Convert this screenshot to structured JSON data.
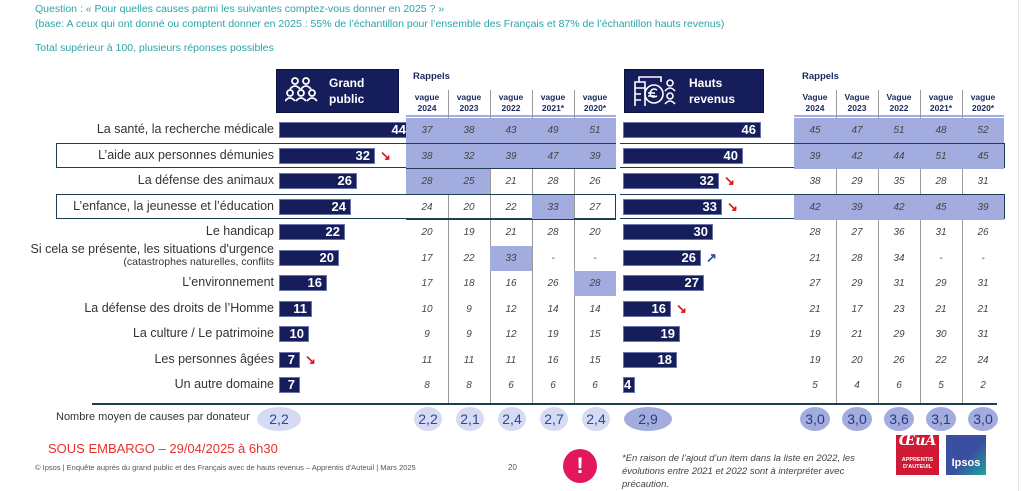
{
  "question": {
    "line1": "Question : « Pour quelles causes parmi les suivantes comptez-vous donner en 2025 ? »",
    "line2": "(base: A ceux qui ont donné ou comptent donner en 2025 : 55% de l’échantillon pour l’ensemble des Français et 87% de l’échantillon hauts revenus)",
    "line3": "Total supérieur à 100, plusieurs réponses possibles"
  },
  "groups": {
    "grand_public": {
      "title_line1": "Grand",
      "title_line2": "public",
      "icon": "people-group-icon"
    },
    "hauts_revenus": {
      "title_line1": "Hauts",
      "title_line2": "revenus",
      "icon": "building-euro-person-icon"
    }
  },
  "rappels_label": "Rappels",
  "waves_gp": [
    {
      "l1": "vague",
      "l2": "2024"
    },
    {
      "l1": "vague",
      "l2": "2023"
    },
    {
      "l1": "vague",
      "l2": "2022"
    },
    {
      "l1": "vague",
      "l2": "2021*"
    },
    {
      "l1": "vague",
      "l2": "2020*"
    }
  ],
  "waves_hr": [
    {
      "l1": "Vague",
      "l2": "2024"
    },
    {
      "l1": "Vague",
      "l2": "2023"
    },
    {
      "l1": "Vague",
      "l2": "2022"
    },
    {
      "l1": "vague",
      "l2": "2021*"
    },
    {
      "l1": "vague",
      "l2": "2020*"
    }
  ],
  "chart_data": {
    "type": "bar",
    "title": "Pour quelles causes parmi les suivantes comptez-vous donner en 2025 ?",
    "unit": "%",
    "categories": [
      "La santé, la recherche médicale",
      "L’aide aux personnes démunies",
      "La défense des animaux",
      "L’enfance, la jeunesse et l’éducation",
      "Le handicap",
      "Si cela se présente, les situations d’urgence (catastrophes naturelles, conflits",
      "L’environnement",
      "La défense des droits de l’Homme",
      "La culture / Le patrimoine",
      "Les personnes âgées",
      "Un autre domaine"
    ],
    "rows": [
      {
        "label": "La santé, la recherche médicale",
        "sub": "",
        "framed": false,
        "gp": 44,
        "gp_trend": "up",
        "gp_hist": [
          "37",
          "38",
          "43",
          "49",
          "51"
        ],
        "gp_hl": [
          1,
          1,
          1,
          1,
          1
        ],
        "hr": 46,
        "hr_trend": "",
        "hr_hist": [
          "45",
          "47",
          "51",
          "48",
          "52"
        ],
        "hr_hl": [
          1,
          1,
          1,
          1,
          1
        ]
      },
      {
        "label": "L’aide aux personnes démunies",
        "sub": "",
        "framed": true,
        "gp": 32,
        "gp_trend": "down",
        "gp_hist": [
          "38",
          "32",
          "39",
          "47",
          "39"
        ],
        "gp_hl": [
          1,
          1,
          1,
          1,
          1
        ],
        "hr": 40,
        "hr_trend": "",
        "hr_hist": [
          "39",
          "42",
          "44",
          "51",
          "45"
        ],
        "hr_hl": [
          1,
          1,
          1,
          1,
          1
        ]
      },
      {
        "label": "La défense des animaux",
        "sub": "",
        "framed": false,
        "gp": 26,
        "gp_trend": "",
        "gp_hist": [
          "28",
          "25",
          "21",
          "28",
          "26"
        ],
        "gp_hl": [
          1,
          1,
          0,
          0,
          0
        ],
        "hr": 32,
        "hr_trend": "down",
        "hr_hist": [
          "38",
          "29",
          "35",
          "28",
          "31"
        ],
        "hr_hl": [
          0,
          0,
          0,
          0,
          0
        ]
      },
      {
        "label": "L’enfance, la jeunesse et l’éducation",
        "sub": "",
        "framed": true,
        "gp": 24,
        "gp_trend": "",
        "gp_hist": [
          "24",
          "20",
          "22",
          "33",
          "27"
        ],
        "gp_hl": [
          0,
          0,
          0,
          1,
          0
        ],
        "hr": 33,
        "hr_trend": "down",
        "hr_hist": [
          "42",
          "39",
          "42",
          "45",
          "39"
        ],
        "hr_hl": [
          1,
          1,
          1,
          1,
          1
        ]
      },
      {
        "label": "Le handicap",
        "sub": "",
        "framed": false,
        "gp": 22,
        "gp_trend": "",
        "gp_hist": [
          "20",
          "19",
          "21",
          "28",
          "20"
        ],
        "gp_hl": [
          0,
          0,
          0,
          0,
          0
        ],
        "hr": 30,
        "hr_trend": "",
        "hr_hist": [
          "28",
          "27",
          "36",
          "31",
          "26"
        ],
        "hr_hl": [
          0,
          0,
          0,
          0,
          0
        ]
      },
      {
        "label": "Si cela se présente, les situations d'urgence",
        "sub": "(catastrophes naturelles, conflits",
        "framed": false,
        "gp": 20,
        "gp_trend": "",
        "gp_hist": [
          "17",
          "22",
          "33",
          "-",
          "-"
        ],
        "gp_hl": [
          0,
          0,
          1,
          0,
          0
        ],
        "hr": 26,
        "hr_trend": "up",
        "hr_hist": [
          "21",
          "28",
          "34",
          "-",
          "-"
        ],
        "hr_hl": [
          0,
          0,
          0,
          0,
          0
        ]
      },
      {
        "label": "L’environnement",
        "sub": "",
        "framed": false,
        "gp": 16,
        "gp_trend": "",
        "gp_hist": [
          "17",
          "18",
          "16",
          "26",
          "28"
        ],
        "gp_hl": [
          0,
          0,
          0,
          0,
          1
        ],
        "hr": 27,
        "hr_trend": "",
        "hr_hist": [
          "27",
          "29",
          "31",
          "29",
          "31"
        ],
        "hr_hl": [
          0,
          0,
          0,
          0,
          0
        ]
      },
      {
        "label": "La défense des droits de l’Homme",
        "sub": "",
        "framed": false,
        "gp": 11,
        "gp_trend": "",
        "gp_hist": [
          "10",
          "9",
          "12",
          "14",
          "14"
        ],
        "gp_hl": [
          0,
          0,
          0,
          0,
          0
        ],
        "hr": 16,
        "hr_trend": "down",
        "hr_hist": [
          "21",
          "17",
          "23",
          "21",
          "21"
        ],
        "hr_hl": [
          0,
          0,
          0,
          0,
          0
        ]
      },
      {
        "label": "La culture / Le patrimoine",
        "sub": "",
        "framed": false,
        "gp": 10,
        "gp_trend": "",
        "gp_hist": [
          "9",
          "9",
          "12",
          "19",
          "15"
        ],
        "gp_hl": [
          0,
          0,
          0,
          0,
          0
        ],
        "hr": 19,
        "hr_trend": "",
        "hr_hist": [
          "19",
          "21",
          "29",
          "30",
          "31"
        ],
        "hr_hl": [
          0,
          0,
          0,
          0,
          0
        ]
      },
      {
        "label": "Les personnes âgées",
        "sub": "",
        "framed": false,
        "gp": 7,
        "gp_trend": "down",
        "gp_hist": [
          "11",
          "11",
          "11",
          "16",
          "15"
        ],
        "gp_hl": [
          0,
          0,
          0,
          0,
          0
        ],
        "hr": 18,
        "hr_trend": "",
        "hr_hist": [
          "19",
          "20",
          "26",
          "22",
          "24"
        ],
        "hr_hl": [
          0,
          0,
          0,
          0,
          0
        ]
      },
      {
        "label": "Un autre domaine",
        "sub": "",
        "framed": false,
        "gp": 7,
        "gp_trend": "",
        "gp_hist": [
          "8",
          "8",
          "6",
          "6",
          "6"
        ],
        "gp_hl": [
          0,
          0,
          0,
          0,
          0
        ],
        "hr": 4,
        "hr_trend": "",
        "hr_hist": [
          "5",
          "4",
          "6",
          "5",
          "2"
        ],
        "hr_hl": [
          0,
          0,
          0,
          0,
          0
        ]
      }
    ],
    "series": [
      {
        "name": "Grand public 2025",
        "values": [
          44,
          32,
          26,
          24,
          22,
          20,
          16,
          11,
          10,
          7,
          7
        ]
      },
      {
        "name": "Hauts revenus 2025",
        "values": [
          46,
          40,
          32,
          33,
          30,
          26,
          27,
          16,
          19,
          18,
          4
        ]
      }
    ],
    "average": {
      "label": "Nombre moyen de causes par donateur",
      "gp": "2,2",
      "gp_hist": [
        "2,2",
        "2,1",
        "2,4",
        "2,7",
        "2,4"
      ],
      "hr": "2,9",
      "hr_hist": [
        "3,0",
        "3,0",
        "3,6",
        "3,1",
        "3,0"
      ]
    },
    "xlim": [
      0,
      50
    ]
  },
  "footer": {
    "embargo": "SOUS EMBARGO – 29/04/2025 à 6h30",
    "source": "© Ipsos | Enquête auprès du grand public et des Français avec de hauts revenus – Apprentis d'Auteuil | Mars 2025",
    "page": "20",
    "note": "*En raison de l’ajout d’un item dans la liste en 2022, les évolutions entre 2021 et 2022 sont à interpréter avec précaution.",
    "warning_glyph": "!",
    "logo_aa_text": "APPRENTIS D'AUTEUIL",
    "logo_ipsos_text": "Ipsos"
  },
  "colors": {
    "bar": "#151d5a",
    "highlight": "#a3acdf",
    "trend_up": "#2a4a9a",
    "trend_down": "#d01818",
    "question": "#2aa5a6",
    "embargo": "#e8302e"
  }
}
